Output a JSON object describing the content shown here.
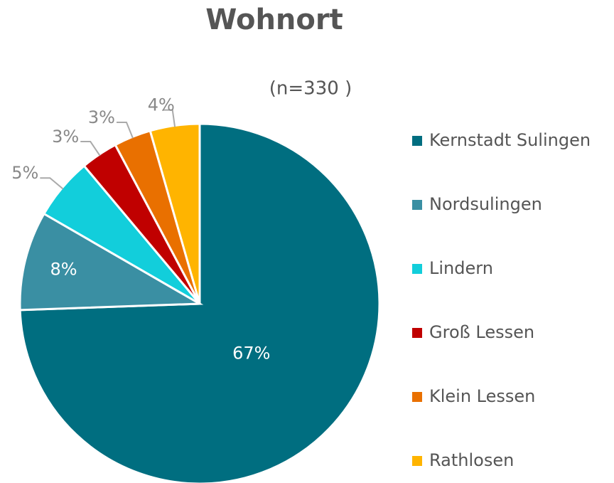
{
  "chart_data": {
    "type": "pie",
    "title": "Wohnort",
    "subtitle": "(n=330 )",
    "categories": [
      "Kernstadt Sulingen",
      "Nordsulingen",
      "Lindern",
      "Groß Lessen",
      "Klein Lessen",
      "Rathlosen"
    ],
    "values": [
      67,
      8,
      5,
      3,
      3,
      4
    ],
    "value_labels": [
      "67%",
      "8%",
      "5%",
      "3%",
      "3%",
      "4%"
    ],
    "colors": [
      "#006e80",
      "#3a8fa3",
      "#12cedb",
      "#c00000",
      "#e97000",
      "#ffb400"
    ],
    "legend": "right"
  }
}
